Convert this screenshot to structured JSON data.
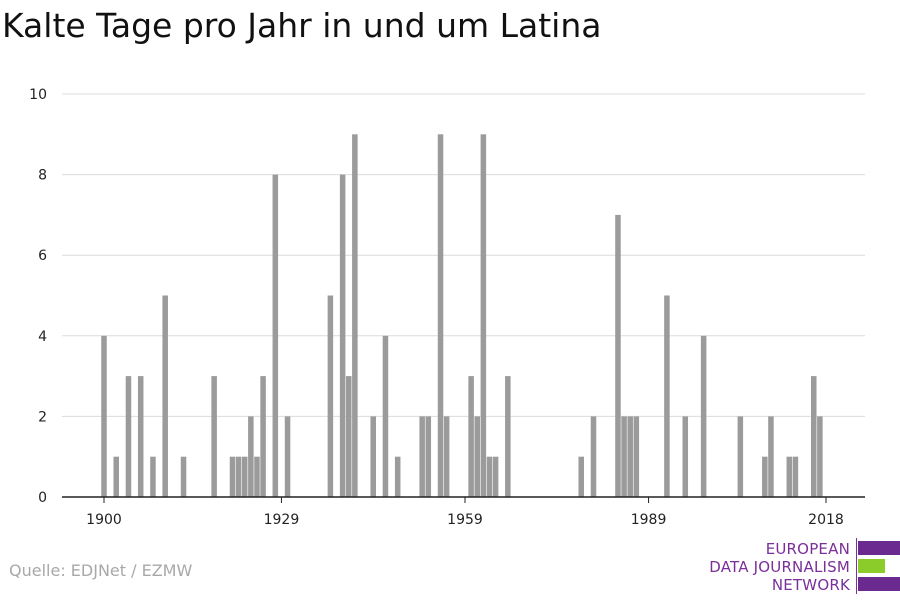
{
  "title": "Kalte Tage pro Jahr in und um Latina",
  "source": "Quelle: EDJNet / EZMW",
  "logo": {
    "lines": [
      "EUROPEAN",
      "DATA JOURNALISM",
      "NETWORK"
    ],
    "colors": [
      "#6b2a8f",
      "#8ccc2a",
      "#6b2a8f"
    ]
  },
  "chart_data": {
    "type": "bar",
    "title": "Kalte Tage pro Jahr in und um Latina",
    "xlabel": "",
    "ylabel": "",
    "x": [
      1900,
      1902,
      1904,
      1906,
      1908,
      1910,
      1913,
      1918,
      1921,
      1922,
      1923,
      1924,
      1925,
      1926,
      1928,
      1930,
      1937,
      1939,
      1940,
      1941,
      1944,
      1946,
      1948,
      1952,
      1953,
      1955,
      1956,
      1960,
      1961,
      1962,
      1963,
      1964,
      1966,
      1978,
      1980,
      1984,
      1985,
      1986,
      1987,
      1992,
      1995,
      1998,
      2004,
      2008,
      2009,
      2012,
      2013,
      2016,
      2017
    ],
    "values": [
      4,
      1,
      3,
      3,
      1,
      5,
      1,
      3,
      1,
      1,
      1,
      2,
      1,
      3,
      8,
      2,
      5,
      8,
      3,
      9,
      2,
      4,
      1,
      2,
      2,
      9,
      2,
      3,
      2,
      9,
      1,
      1,
      3,
      1,
      2,
      7,
      2,
      2,
      2,
      5,
      2,
      4,
      2,
      1,
      2,
      1,
      1,
      3,
      2
    ],
    "x_ticks": [
      "1900",
      "1929",
      "1959",
      "1989",
      "2018"
    ],
    "xlim": [
      1899,
      2020
    ],
    "y_ticks": [
      "0",
      "2",
      "4",
      "6",
      "8",
      "10"
    ],
    "ylim": [
      0,
      10
    ],
    "grid": true,
    "colors": {
      "bar": "#9b9b9b",
      "grid": "#dcdcdc",
      "axis": "#222222"
    }
  }
}
